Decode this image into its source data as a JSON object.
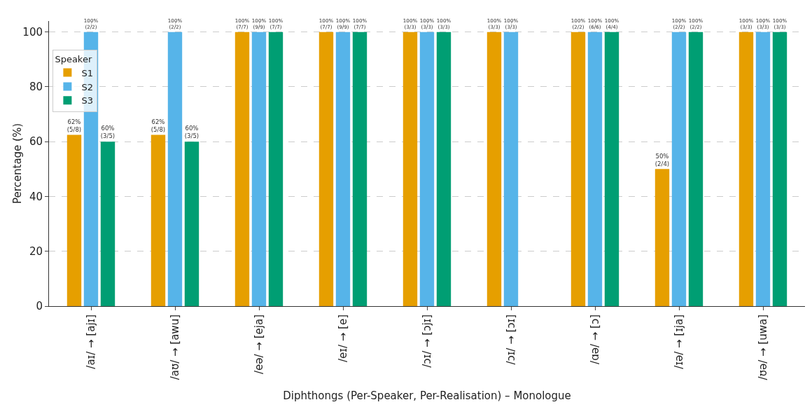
{
  "chart_data": {
    "type": "bar",
    "xlabel": "Diphthongs (Per-Speaker, Per-Realisation) – Monologue",
    "ylabel": "Percentage (%)",
    "legend_title": "Speaker",
    "legend": "top left",
    "grid": true,
    "categories": [
      "/aɪ/ → [ajɪ]",
      "/aʊ/ → [awu]",
      "/eə/ → [eja]",
      "/eɪ/ → [e]",
      "/ɔɪ/ → [ɔjɪ]",
      "/ɔɪ/ → [ɔɪ]",
      "/ɑə/ → [ɔ]",
      "/ɪə/ → [ɪja]",
      "/ʊə/ → [uwa]"
    ],
    "ylim": [
      0,
      104
    ],
    "yticks": [
      0,
      20,
      40,
      60,
      80,
      100
    ],
    "series": [
      {
        "name": "S1",
        "color": "#e69f00",
        "values": [
          62.5,
          62.5,
          100,
          100,
          100,
          100,
          100,
          50,
          100
        ],
        "value_labels": [
          "62%\n(5/8)",
          "62%\n(5/8)",
          "100%\n(7/7)",
          "100%\n(7/7)",
          "100%\n(3/3)",
          "100%\n(3/3)",
          "100%\n(2/2)",
          "50%\n(2/4)",
          "100%\n(3/3)"
        ]
      },
      {
        "name": "S2",
        "color": "#56b4e9",
        "values": [
          100,
          100,
          100,
          100,
          100,
          100,
          100,
          100,
          100
        ],
        "value_labels": [
          "100%\n(2/2)",
          "100%\n(2/2)",
          "100%\n(9/9)",
          "100%\n(9/9)",
          "100%\n(3/3)",
          "100%\n(3/3)",
          "100%\n(6/6)",
          "100%\n(2/2)",
          "100%\n(3/3)"
        ]
      },
      {
        "name": "S3",
        "color": "#009e73",
        "values": [
          60,
          60,
          100,
          100,
          100,
          null,
          100,
          100,
          100
        ],
        "value_labels": [
          "60%\n(3/5)",
          "60%\n(3/5)",
          "100%\n(7/7)",
          "100%\n(7/7)",
          "100%\n(3/3)",
          null,
          "100%\n(4/4)",
          "100%\n(2/2)",
          "100%\n(3/3)"
        ]
      }
    ]
  }
}
